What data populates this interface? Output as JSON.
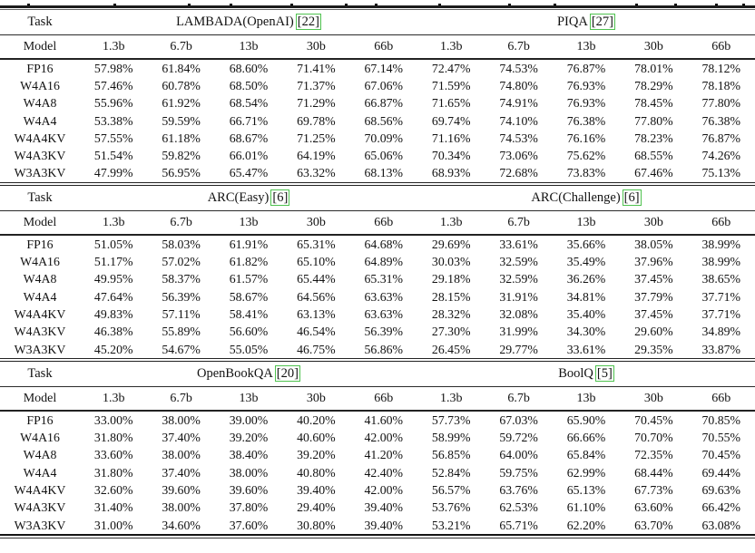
{
  "table": {
    "task_header": "Task",
    "model_header": "Model",
    "sizes": [
      "1.3b",
      "6.7b",
      "13b",
      "30b",
      "66b"
    ],
    "sections": [
      {
        "benchmarks": [
          {
            "name": "LAMBADA(OpenAI)",
            "cite": "[22]"
          },
          {
            "name": "PIQA",
            "cite": "[27]"
          }
        ],
        "rows": [
          {
            "model": "FP16",
            "values": [
              "57.98%",
              "61.84%",
              "68.60%",
              "71.41%",
              "67.14%",
              "72.47%",
              "74.53%",
              "76.87%",
              "78.01%",
              "78.12%"
            ]
          },
          {
            "model": "W4A16",
            "values": [
              "57.46%",
              "60.78%",
              "68.50%",
              "71.37%",
              "67.06%",
              "71.59%",
              "74.80%",
              "76.93%",
              "78.29%",
              "78.18%"
            ]
          },
          {
            "model": "W4A8",
            "values": [
              "55.96%",
              "61.92%",
              "68.54%",
              "71.29%",
              "66.87%",
              "71.65%",
              "74.91%",
              "76.93%",
              "78.45%",
              "77.80%"
            ]
          },
          {
            "model": "W4A4",
            "values": [
              "53.38%",
              "59.59%",
              "66.71%",
              "69.78%",
              "68.56%",
              "69.74%",
              "74.10%",
              "76.38%",
              "77.80%",
              "76.38%"
            ]
          },
          {
            "model": "W4A4KV",
            "values": [
              "57.55%",
              "61.18%",
              "68.67%",
              "71.25%",
              "70.09%",
              "71.16%",
              "74.53%",
              "76.16%",
              "78.23%",
              "76.87%"
            ]
          },
          {
            "model": "W4A3KV",
            "values": [
              "51.54%",
              "59.82%",
              "66.01%",
              "64.19%",
              "65.06%",
              "70.34%",
              "73.06%",
              "75.62%",
              "68.55%",
              "74.26%"
            ]
          },
          {
            "model": "W3A3KV",
            "values": [
              "47.99%",
              "56.95%",
              "65.47%",
              "63.32%",
              "68.13%",
              "68.93%",
              "72.68%",
              "73.83%",
              "67.46%",
              "75.13%"
            ]
          }
        ]
      },
      {
        "benchmarks": [
          {
            "name": "ARC(Easy)",
            "cite": "[6]"
          },
          {
            "name": "ARC(Challenge)",
            "cite": "[6]"
          }
        ],
        "rows": [
          {
            "model": "FP16",
            "values": [
              "51.05%",
              "58.03%",
              "61.91%",
              "65.31%",
              "64.68%",
              "29.69%",
              "33.61%",
              "35.66%",
              "38.05%",
              "38.99%"
            ]
          },
          {
            "model": "W4A16",
            "values": [
              "51.17%",
              "57.02%",
              "61.82%",
              "65.10%",
              "64.89%",
              "30.03%",
              "32.59%",
              "35.49%",
              "37.96%",
              "38.99%"
            ]
          },
          {
            "model": "W4A8",
            "values": [
              "49.95%",
              "58.37%",
              "61.57%",
              "65.44%",
              "65.31%",
              "29.18%",
              "32.59%",
              "36.26%",
              "37.45%",
              "38.65%"
            ]
          },
          {
            "model": "W4A4",
            "values": [
              "47.64%",
              "56.39%",
              "58.67%",
              "64.56%",
              "63.63%",
              "28.15%",
              "31.91%",
              "34.81%",
              "37.79%",
              "37.71%"
            ]
          },
          {
            "model": "W4A4KV",
            "values": [
              "49.83%",
              "57.11%",
              "58.41%",
              "63.13%",
              "63.63%",
              "28.32%",
              "32.08%",
              "35.40%",
              "37.45%",
              "37.71%"
            ]
          },
          {
            "model": "W4A3KV",
            "values": [
              "46.38%",
              "55.89%",
              "56.60%",
              "46.54%",
              "56.39%",
              "27.30%",
              "31.99%",
              "34.30%",
              "29.60%",
              "34.89%"
            ]
          },
          {
            "model": "W3A3KV",
            "values": [
              "45.20%",
              "54.67%",
              "55.05%",
              "46.75%",
              "56.86%",
              "26.45%",
              "29.77%",
              "33.61%",
              "29.35%",
              "33.87%"
            ]
          }
        ]
      },
      {
        "benchmarks": [
          {
            "name": "OpenBookQA",
            "cite": "[20]"
          },
          {
            "name": "BoolQ",
            "cite": "[5]"
          }
        ],
        "rows": [
          {
            "model": "FP16",
            "values": [
              "33.00%",
              "38.00%",
              "39.00%",
              "40.20%",
              "41.60%",
              "57.73%",
              "67.03%",
              "65.90%",
              "70.45%",
              "70.85%"
            ]
          },
          {
            "model": "W4A16",
            "values": [
              "31.80%",
              "37.40%",
              "39.20%",
              "40.60%",
              "42.00%",
              "58.99%",
              "59.72%",
              "66.66%",
              "70.70%",
              "70.55%"
            ]
          },
          {
            "model": "W4A8",
            "values": [
              "33.60%",
              "38.00%",
              "38.40%",
              "39.20%",
              "41.20%",
              "56.85%",
              "64.00%",
              "65.84%",
              "72.35%",
              "70.45%"
            ]
          },
          {
            "model": "W4A4",
            "values": [
              "31.80%",
              "37.40%",
              "38.00%",
              "40.80%",
              "42.40%",
              "52.84%",
              "59.75%",
              "62.99%",
              "68.44%",
              "69.44%"
            ]
          },
          {
            "model": "W4A4KV",
            "values": [
              "32.60%",
              "39.60%",
              "39.60%",
              "39.40%",
              "42.00%",
              "56.57%",
              "63.76%",
              "65.13%",
              "67.73%",
              "69.63%"
            ]
          },
          {
            "model": "W4A3KV",
            "values": [
              "31.40%",
              "38.00%",
              "37.80%",
              "29.40%",
              "39.40%",
              "53.76%",
              "62.53%",
              "61.10%",
              "63.60%",
              "66.42%"
            ]
          },
          {
            "model": "W3A3KV",
            "values": [
              "31.00%",
              "34.60%",
              "37.60%",
              "30.80%",
              "39.40%",
              "53.21%",
              "65.71%",
              "62.20%",
              "63.70%",
              "63.08%"
            ]
          }
        ]
      }
    ],
    "citation_border_color": "#4fc24f"
  }
}
